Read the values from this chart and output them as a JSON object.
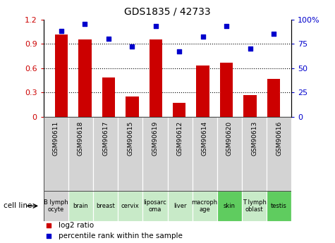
{
  "title": "GDS1835 / 42733",
  "gsm_labels": [
    "GSM90611",
    "GSM90618",
    "GSM90617",
    "GSM90615",
    "GSM90619",
    "GSM90612",
    "GSM90614",
    "GSM90620",
    "GSM90613",
    "GSM90616"
  ],
  "cell_labels": [
    "B lymph\nocyte",
    "brain",
    "breast",
    "cervix",
    "liposarc\noma",
    "liver",
    "macroph\nage",
    "skin",
    "T lymph\noblast",
    "testis"
  ],
  "cell_bg_colors": [
    "#d3d3d3",
    "#c8eac8",
    "#c8eac8",
    "#c8eac8",
    "#c8eac8",
    "#c8eac8",
    "#c8eac8",
    "#5fcc5f",
    "#c8eac8",
    "#5fcc5f"
  ],
  "gsm_bg_color": "#d3d3d3",
  "log2_ratio": [
    1.01,
    0.95,
    0.48,
    0.25,
    0.95,
    0.17,
    0.63,
    0.67,
    0.27,
    0.47
  ],
  "percentile_rank": [
    88,
    95,
    80,
    72,
    93,
    67,
    82,
    93,
    70,
    85
  ],
  "bar_color": "#cc0000",
  "dot_color": "#0000cc",
  "left_ylim": [
    0,
    1.2
  ],
  "right_ylim": [
    0,
    100
  ],
  "left_yticks": [
    0,
    0.3,
    0.6,
    0.9,
    1.2
  ],
  "right_yticks": [
    0,
    25,
    50,
    75,
    100
  ],
  "right_yticklabels": [
    "0",
    "25",
    "50",
    "75",
    "100%"
  ],
  "grid_yticks": [
    0.3,
    0.6,
    0.9
  ],
  "legend_items": [
    "log2 ratio",
    "percentile rank within the sample"
  ],
  "cell_line_label": "cell line",
  "bar_width": 0.55,
  "figsize": [
    4.75,
    3.45
  ],
  "dpi": 100
}
